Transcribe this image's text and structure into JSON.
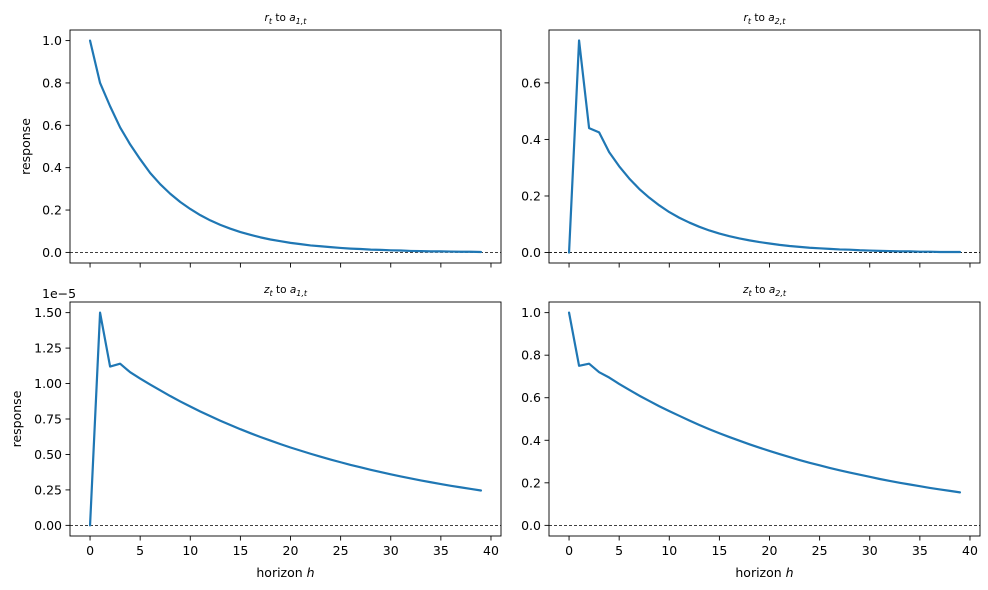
{
  "chart_data": [
    {
      "type": "line",
      "title": "r_t to a_{1,t}",
      "title_parts": {
        "var": "r",
        "var_sub": "t",
        "to": "to",
        "shock": "a",
        "shock_sub": "1,t"
      },
      "xlabel": "",
      "ylabel": "response",
      "xlim": [
        -2,
        41
      ],
      "ylim": [
        -0.05,
        1.05
      ],
      "xticks": [
        0,
        5,
        10,
        15,
        20,
        25,
        30,
        35,
        40
      ],
      "xtick_labels": [],
      "yticks": [
        0.0,
        0.2,
        0.4,
        0.6,
        0.8,
        1.0
      ],
      "ytick_labels": [
        "0.0",
        "0.2",
        "0.4",
        "0.6",
        "0.8",
        "1.0"
      ],
      "offset_text": "",
      "zero_line": true,
      "color": "#1f77b4",
      "x": [
        0,
        1,
        2,
        3,
        4,
        5,
        6,
        7,
        8,
        9,
        10,
        11,
        12,
        13,
        14,
        15,
        16,
        17,
        18,
        19,
        20,
        21,
        22,
        23,
        24,
        25,
        26,
        27,
        28,
        29,
        30,
        31,
        32,
        33,
        34,
        35,
        36,
        37,
        38,
        39
      ],
      "y": [
        1.0,
        0.8,
        0.69,
        0.59,
        0.51,
        0.44,
        0.375,
        0.322,
        0.277,
        0.238,
        0.205,
        0.176,
        0.151,
        0.13,
        0.112,
        0.096,
        0.083,
        0.071,
        0.061,
        0.053,
        0.045,
        0.039,
        0.033,
        0.029,
        0.025,
        0.021,
        0.018,
        0.016,
        0.013,
        0.012,
        0.01,
        0.009,
        0.007,
        0.006,
        0.005,
        0.005,
        0.004,
        0.003,
        0.003,
        0.002
      ]
    },
    {
      "type": "line",
      "title": "r_t to a_{2,t}",
      "title_parts": {
        "var": "r",
        "var_sub": "t",
        "to": "to",
        "shock": "a",
        "shock_sub": "2,t"
      },
      "xlabel": "",
      "ylabel": "",
      "xlim": [
        -2,
        41
      ],
      "ylim": [
        -0.037,
        0.787
      ],
      "xticks": [
        0,
        5,
        10,
        15,
        20,
        25,
        30,
        35,
        40
      ],
      "xtick_labels": [],
      "yticks": [
        0.0,
        0.2,
        0.4,
        0.6
      ],
      "ytick_labels": [
        "0.0",
        "0.2",
        "0.4",
        "0.6"
      ],
      "offset_text": "",
      "zero_line": true,
      "color": "#1f77b4",
      "x": [
        0,
        1,
        2,
        3,
        4,
        5,
        6,
        7,
        8,
        9,
        10,
        11,
        12,
        13,
        14,
        15,
        16,
        17,
        18,
        19,
        20,
        21,
        22,
        23,
        24,
        25,
        26,
        27,
        28,
        29,
        30,
        31,
        32,
        33,
        34,
        35,
        36,
        37,
        38,
        39
      ],
      "y": [
        0.0,
        0.75,
        0.44,
        0.425,
        0.355,
        0.305,
        0.262,
        0.225,
        0.194,
        0.167,
        0.143,
        0.123,
        0.106,
        0.091,
        0.078,
        0.067,
        0.058,
        0.05,
        0.043,
        0.037,
        0.032,
        0.027,
        0.023,
        0.02,
        0.017,
        0.015,
        0.013,
        0.011,
        0.01,
        0.008,
        0.007,
        0.006,
        0.005,
        0.004,
        0.004,
        0.003,
        0.003,
        0.002,
        0.002,
        0.002
      ]
    },
    {
      "type": "line",
      "title": "z_t to a_{1,t}",
      "title_parts": {
        "var": "z",
        "var_sub": "t",
        "to": "to",
        "shock": "a",
        "shock_sub": "1,t"
      },
      "xlabel": "horizon h",
      "xlabel_parts": {
        "text": "horizon",
        "var": "h"
      },
      "ylabel": "response",
      "xlim": [
        -2,
        41
      ],
      "ylim": [
        -0.075,
        1.575
      ],
      "xticks": [
        0,
        5,
        10,
        15,
        20,
        25,
        30,
        35,
        40
      ],
      "xtick_labels": [
        "0",
        "5",
        "10",
        "15",
        "20",
        "25",
        "30",
        "35",
        "40"
      ],
      "yticks": [
        0.0,
        0.25,
        0.5,
        0.75,
        1.0,
        1.25,
        1.5
      ],
      "ytick_labels": [
        "0.00",
        "0.25",
        "0.50",
        "0.75",
        "1.00",
        "1.25",
        "1.50"
      ],
      "offset_text": "1e−5",
      "zero_line": true,
      "color": "#1f77b4",
      "x": [
        0,
        1,
        2,
        3,
        4,
        5,
        6,
        7,
        8,
        9,
        10,
        11,
        12,
        13,
        14,
        15,
        16,
        17,
        18,
        19,
        20,
        21,
        22,
        23,
        24,
        25,
        26,
        27,
        28,
        29,
        30,
        31,
        32,
        33,
        34,
        35,
        36,
        37,
        38,
        39
      ],
      "y": [
        0.0,
        1.5,
        1.12,
        1.14,
        1.08,
        1.035,
        0.993,
        0.952,
        0.912,
        0.874,
        0.838,
        0.803,
        0.77,
        0.738,
        0.708,
        0.678,
        0.65,
        0.623,
        0.598,
        0.573,
        0.549,
        0.527,
        0.505,
        0.484,
        0.464,
        0.445,
        0.426,
        0.409,
        0.392,
        0.376,
        0.36,
        0.345,
        0.331,
        0.317,
        0.304,
        0.291,
        0.279,
        0.268,
        0.257,
        0.246
      ]
    },
    {
      "type": "line",
      "title": "z_t to a_{2,t}",
      "title_parts": {
        "var": "z",
        "var_sub": "t",
        "to": "to",
        "shock": "a",
        "shock_sub": "2,t"
      },
      "xlabel": "horizon h",
      "xlabel_parts": {
        "text": "horizon",
        "var": "h"
      },
      "ylabel": "",
      "xlim": [
        -2,
        41
      ],
      "ylim": [
        -0.05,
        1.05
      ],
      "xticks": [
        0,
        5,
        10,
        15,
        20,
        25,
        30,
        35,
        40
      ],
      "xtick_labels": [
        "0",
        "5",
        "10",
        "15",
        "20",
        "25",
        "30",
        "35",
        "40"
      ],
      "yticks": [
        0.0,
        0.2,
        0.4,
        0.6,
        0.8,
        1.0
      ],
      "ytick_labels": [
        "0.0",
        "0.2",
        "0.4",
        "0.6",
        "0.8",
        "1.0"
      ],
      "offset_text": "",
      "zero_line": true,
      "color": "#1f77b4",
      "x": [
        0,
        1,
        2,
        3,
        4,
        5,
        6,
        7,
        8,
        9,
        10,
        11,
        12,
        13,
        14,
        15,
        16,
        17,
        18,
        19,
        20,
        21,
        22,
        23,
        24,
        25,
        26,
        27,
        28,
        29,
        30,
        31,
        32,
        33,
        34,
        35,
        36,
        37,
        38,
        39
      ],
      "y": [
        1.0,
        0.75,
        0.76,
        0.72,
        0.695,
        0.665,
        0.637,
        0.61,
        0.585,
        0.56,
        0.537,
        0.515,
        0.493,
        0.472,
        0.452,
        0.433,
        0.415,
        0.398,
        0.381,
        0.365,
        0.35,
        0.335,
        0.321,
        0.307,
        0.294,
        0.282,
        0.27,
        0.259,
        0.248,
        0.238,
        0.228,
        0.218,
        0.209,
        0.2,
        0.192,
        0.184,
        0.176,
        0.169,
        0.162,
        0.155
      ]
    }
  ]
}
